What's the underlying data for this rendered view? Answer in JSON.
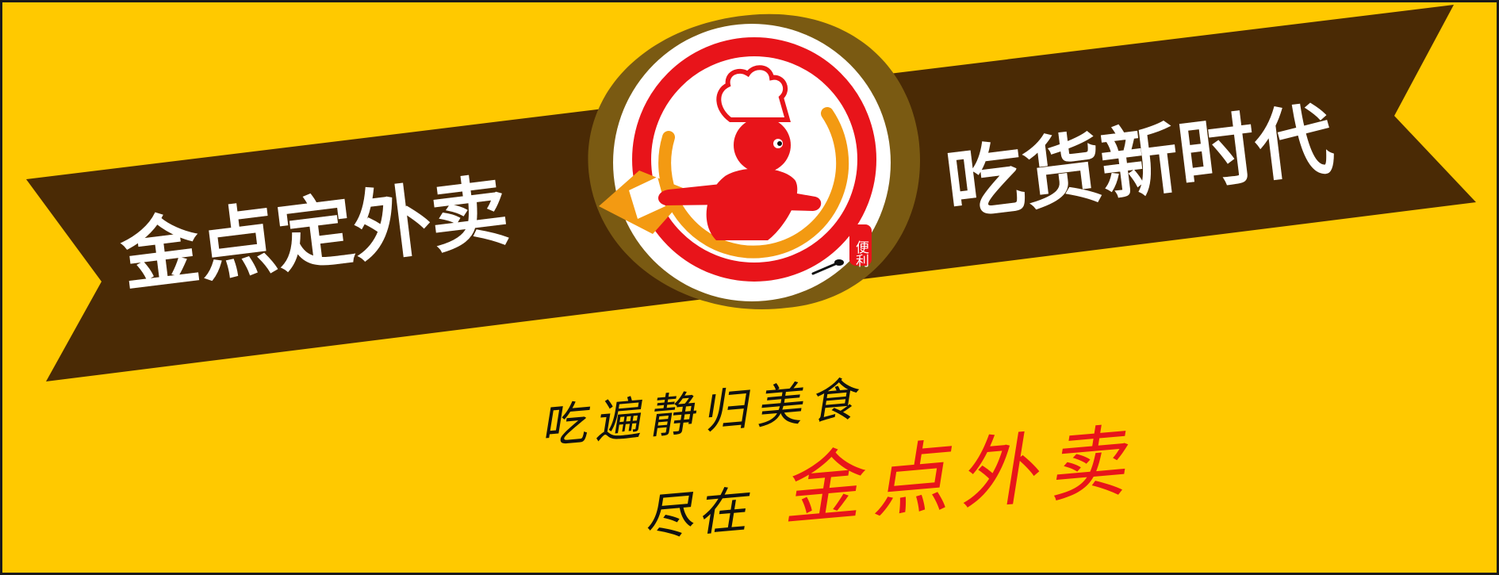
{
  "ribbon": {
    "left_text": "金点定外卖",
    "right_text": "吃货新时代"
  },
  "logo": {
    "seal_text": "便利"
  },
  "slogan": {
    "line1": "吃遍静归美食",
    "line2_prefix": "尽在",
    "line2_brand": "金点外卖"
  },
  "colors": {
    "background": "#ffc900",
    "ribbon": "#4a2a05",
    "logo_ring_outer": "#7a5a12",
    "logo_red": "#e8141a",
    "logo_orange": "#f39a12",
    "text_white": "#ffffff",
    "slogan_black": "#111111",
    "slogan_red": "#e8141a"
  }
}
